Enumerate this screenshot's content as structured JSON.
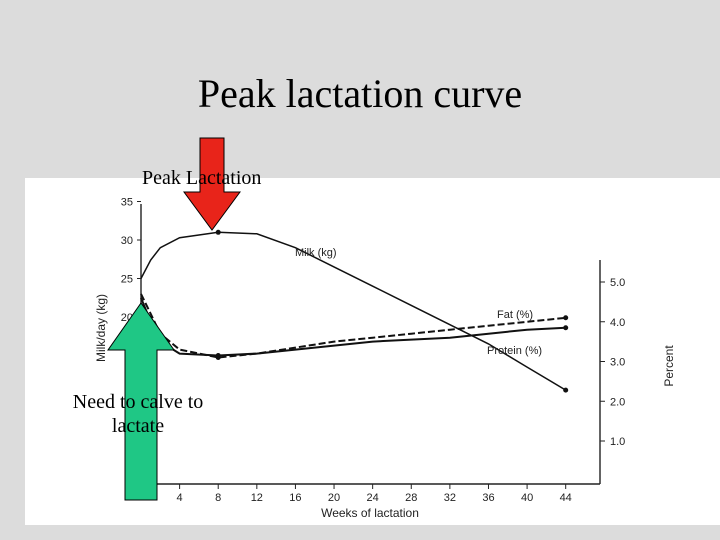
{
  "slide": {
    "title": "Peak lactation curve",
    "peak_annotation": "Peak Lactation",
    "calve_annotation": "Need to calve to lactate",
    "peak_arrow_color": "#e8241a",
    "calve_arrow_color": "#1fc785"
  },
  "chart_data": {
    "type": "line",
    "x": [
      0,
      1,
      2,
      4,
      8,
      12,
      16,
      20,
      24,
      28,
      32,
      36,
      40,
      44
    ],
    "xlabel": "Weeks of lactation",
    "x_ticks": [
      "4",
      "8",
      "12",
      "16",
      "20",
      "24",
      "28",
      "32",
      "36",
      "40",
      "44"
    ],
    "xlim": [
      0,
      46
    ],
    "left_axis": {
      "label": "Milk/day (kg)",
      "ticks": [
        "35",
        "30",
        "25",
        "20"
      ],
      "ylim": [
        0,
        35
      ]
    },
    "right_axis": {
      "label": "Percent",
      "ticks": [
        "5.0",
        "4.0",
        "3.0",
        "2.0",
        "1.0"
      ],
      "ylim": [
        0.5,
        5.5
      ]
    },
    "series": [
      {
        "name": "Milk (kg)",
        "axis": "left",
        "values": [
          25,
          27.4,
          29,
          30.3,
          31,
          30.8,
          29,
          26.5,
          24,
          21.5,
          19,
          16.5,
          13.5,
          10.5
        ]
      },
      {
        "name": "Fat (%)",
        "axis": "right",
        "values": [
          4.7,
          4.2,
          3.7,
          3.3,
          3.1,
          3.2,
          3.35,
          3.5,
          3.6,
          3.7,
          3.8,
          3.9,
          4.0,
          4.1
        ]
      },
      {
        "name": "Protein (%)",
        "axis": "right",
        "values": [
          4.6,
          4.0,
          3.5,
          3.2,
          3.15,
          3.2,
          3.3,
          3.4,
          3.5,
          3.55,
          3.6,
          3.7,
          3.8,
          3.85
        ]
      }
    ],
    "grid": false,
    "legend": "inline labels"
  }
}
